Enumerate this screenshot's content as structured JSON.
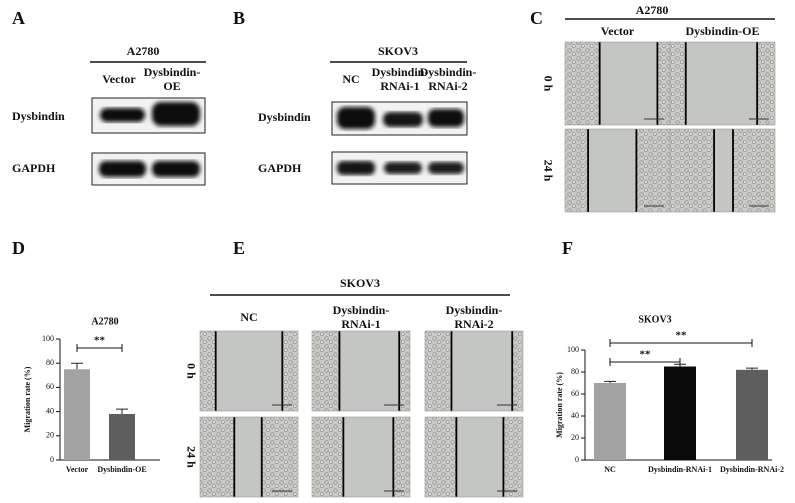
{
  "panel_labels": [
    "A",
    "B",
    "C",
    "D",
    "E",
    "F"
  ],
  "blot_a": {
    "cell_line": "A2780",
    "lanes": [
      [
        "Vector"
      ],
      [
        "Dysbindin-",
        "OE"
      ]
    ],
    "rows": [
      "Dysbindin",
      "GAPDH"
    ]
  },
  "blot_b": {
    "cell_line": "SKOV3",
    "lanes": [
      [
        "NC"
      ],
      [
        "Dysbindin-",
        "RNAi-1"
      ],
      [
        "Dysbindin-",
        "RNAi-2"
      ]
    ],
    "rows": [
      "Dysbindin",
      "GAPDH"
    ]
  },
  "scratch_c": {
    "cell_line": "A2780",
    "columns": [
      [
        "Vector"
      ],
      [
        "Dysbindin-OE"
      ]
    ],
    "rows": [
      "0 h",
      "24 h"
    ]
  },
  "scratch_e": {
    "cell_line": "SKOV3",
    "columns": [
      [
        "NC"
      ],
      [
        "Dysbindin-",
        "RNAi-1"
      ],
      [
        "Dysbindin-",
        "RNAi-2"
      ]
    ],
    "rows": [
      "0 h",
      "24 h"
    ]
  },
  "chart_data": [
    {
      "type": "bar",
      "title": "A2780",
      "y_label": "Migration rate (%)",
      "categories": [
        "Vector",
        "Dysbindin-OE"
      ],
      "values": [
        75,
        38
      ],
      "errors": [
        5,
        4
      ],
      "colors": [
        "#a2a2a2",
        "#5e5e5e"
      ],
      "ylim": [
        0,
        100
      ],
      "yticks": [
        0,
        20,
        40,
        60,
        80,
        100
      ],
      "annotations": [
        {
          "label": "**",
          "between": [
            "Vector",
            "Dysbindin-OE"
          ]
        }
      ]
    },
    {
      "type": "bar",
      "title": "SKOV3",
      "y_label": "Migration rate (%)",
      "categories": [
        "NC",
        "Dysbindin-RNAi-1",
        "Dysbindin-RNAi-2"
      ],
      "values": [
        70,
        85,
        82
      ],
      "errors": [
        1.5,
        2,
        1.5
      ],
      "colors": [
        "#a2a2a2",
        "#0a0a0a",
        "#5e5e5e"
      ],
      "ylim": [
        0,
        100
      ],
      "yticks": [
        0,
        20,
        40,
        60,
        80,
        100
      ],
      "annotations": [
        {
          "label": "**",
          "between": [
            "NC",
            "Dysbindin-RNAi-1"
          ]
        },
        {
          "label": "**",
          "between": [
            "NC",
            "Dysbindin-RNAi-2"
          ]
        }
      ]
    }
  ]
}
